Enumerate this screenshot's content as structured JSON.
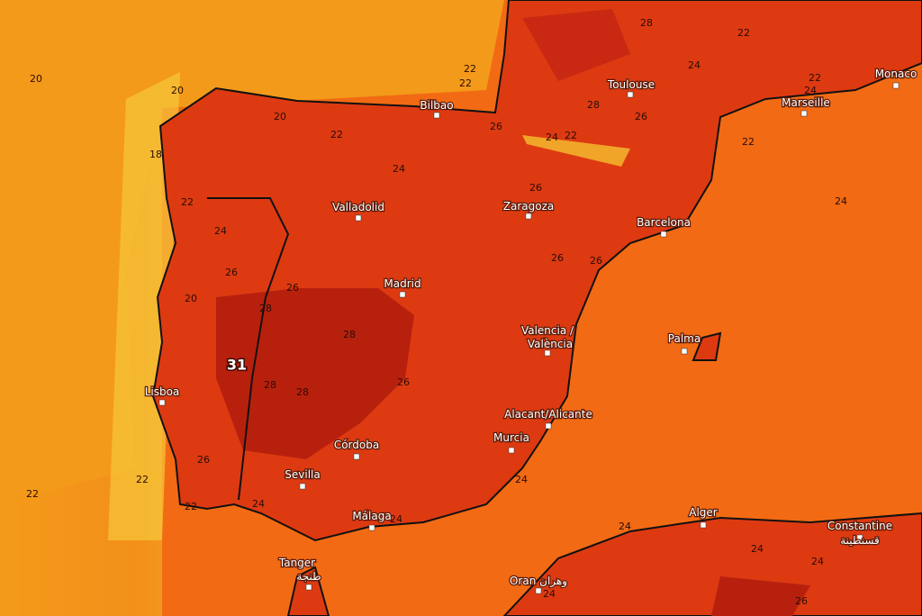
{
  "cities": [
    "Bilbao",
    "Toulouse",
    "Monaco",
    "Marseille",
    "Valladolid",
    "Zaragoza",
    "Barcelona",
    "Madrid",
    "Valencia /",
    "València",
    "Palma",
    "Lisboa",
    "Alacant/Alicante",
    "Murcia",
    "Córdoba",
    "Sevilla",
    "Málaga",
    "Tanger",
    "طنجة",
    "Oran وهران",
    "Alger",
    "Constantine",
    "قسنطينة"
  ],
  "contour_labels": [
    20,
    20,
    20,
    18,
    22,
    24,
    26,
    20,
    28,
    26,
    31,
    28,
    28,
    28,
    26,
    26,
    22,
    22,
    22,
    24,
    24,
    24,
    24,
    24,
    24,
    24,
    26,
    22,
    24,
    26,
    26,
    26,
    22,
    22,
    28,
    22,
    24,
    22,
    24,
    28,
    26,
    26,
    24,
    22,
    24,
    22
  ]
}
